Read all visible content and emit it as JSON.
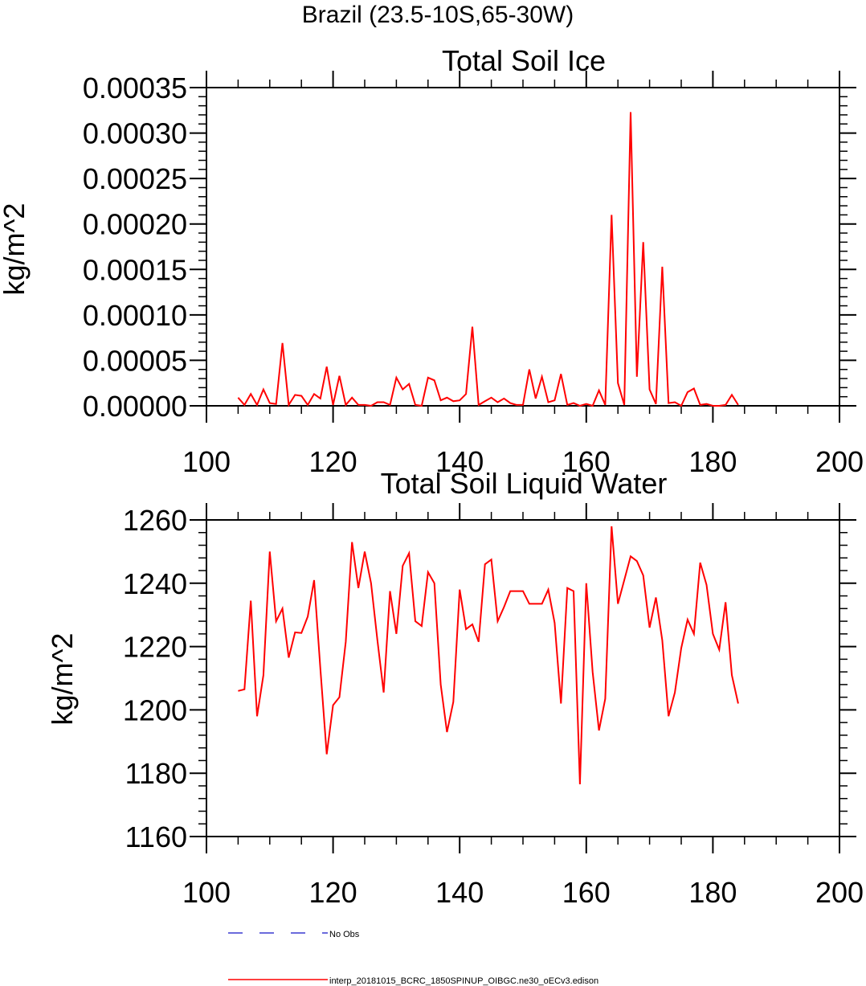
{
  "page_title": "Brazil (23.5-10S,65-30W)",
  "colors": {
    "model_line": "#ff0000",
    "obs_line": "#3a3ad0",
    "axis": "#000000"
  },
  "legend": {
    "obs_label": "No Obs",
    "model_label": "interp_20181015_BCRC_1850SPINUP_OIBGC.ne30_oECv3.edison"
  },
  "chart_data": [
    {
      "type": "line",
      "title": "Total Soil Ice",
      "ylabel": "kg/m^2",
      "xlim": [
        100,
        200
      ],
      "ylim": [
        0,
        0.00035
      ],
      "xticks": [
        100,
        120,
        140,
        160,
        180,
        200
      ],
      "xtick_labels": [
        "100",
        "120",
        "140",
        "160",
        "180",
        "200"
      ],
      "yticks": [
        0,
        5e-05,
        0.0001,
        0.00015,
        0.0002,
        0.00025,
        0.0003,
        0.00035
      ],
      "ytick_labels": [
        "0.00000",
        "0.00005",
        "0.00010",
        "0.00015",
        "0.00020",
        "0.00025",
        "0.00030",
        "0.00035"
      ],
      "series": [
        {
          "x": [
            105,
            106,
            107,
            108,
            109,
            110,
            111,
            112,
            113,
            114,
            115,
            116,
            117,
            118,
            119,
            120,
            121,
            122,
            123,
            124,
            125,
            126,
            127,
            128,
            129,
            130,
            131,
            132,
            133,
            134,
            135,
            136,
            137,
            138,
            139,
            140,
            141,
            142,
            143,
            144,
            145,
            146,
            147,
            148,
            149,
            150,
            151,
            152,
            153,
            154,
            155,
            156,
            157,
            158,
            159,
            160,
            161,
            162,
            163,
            164,
            165,
            166,
            167,
            168,
            169,
            170,
            171,
            172,
            173,
            174,
            175,
            176,
            177,
            178,
            179,
            180,
            181,
            182,
            183,
            184
          ],
          "y": [
            9e-06,
            1e-06,
            1.3e-05,
            1e-06,
            1.8e-05,
            3e-06,
            2e-06,
            6.9e-05,
            1e-06,
            1.2e-05,
            1.1e-05,
            1e-06,
            1.3e-05,
            8e-06,
            4.3e-05,
            1e-06,
            3.3e-05,
            1e-06,
            9e-06,
            1e-06,
            1e-06,
            0.0,
            4e-06,
            4e-06,
            1e-06,
            3.1e-05,
            1.8e-05,
            2.4e-05,
            1e-06,
            0.0,
            3.1e-05,
            2.8e-05,
            6e-06,
            9e-06,
            5e-06,
            6e-06,
            1.3e-05,
            8.7e-05,
            1e-06,
            5e-06,
            9e-06,
            4e-06,
            8e-06,
            3e-06,
            1e-06,
            1e-06,
            4e-05,
            8e-06,
            3.2e-05,
            4e-06,
            6e-06,
            3.5e-05,
            1e-06,
            3e-06,
            0.0,
            2e-06,
            0.0,
            1.7e-05,
            1e-06,
            0.00021,
            2.5e-05,
            1e-06,
            0.000323,
            3.2e-05,
            0.00018,
            1.8e-05,
            2e-06,
            0.000153,
            3e-06,
            4e-06,
            0.0,
            1.5e-05,
            1.9e-05,
            1e-06,
            2e-06,
            0.0,
            0.0,
            1e-06,
            1.2e-05,
            1e-06
          ]
        }
      ]
    },
    {
      "type": "line",
      "title": "Total Soil Liquid Water",
      "ylabel": "kg/m^2",
      "xlim": [
        100,
        200
      ],
      "ylim": [
        1160,
        1260
      ],
      "xticks": [
        100,
        120,
        140,
        160,
        180,
        200
      ],
      "xtick_labels": [
        "100",
        "120",
        "140",
        "160",
        "180",
        "200"
      ],
      "yticks": [
        1160,
        1180,
        1200,
        1220,
        1240,
        1260
      ],
      "ytick_labels": [
        "1160",
        "1180",
        "1200",
        "1220",
        "1240",
        "1260"
      ],
      "series": [
        {
          "x": [
            105,
            106,
            107,
            108,
            109,
            110,
            111,
            112,
            113,
            114,
            115,
            116,
            117,
            118,
            119,
            120,
            121,
            122,
            123,
            124,
            125,
            126,
            127,
            128,
            129,
            130,
            131,
            132,
            133,
            134,
            135,
            136,
            137,
            138,
            139,
            140,
            141,
            142,
            143,
            144,
            145,
            146,
            147,
            148,
            149,
            150,
            151,
            152,
            153,
            154,
            155,
            156,
            157,
            158,
            159,
            160,
            161,
            162,
            163,
            164,
            165,
            166,
            167,
            168,
            169,
            170,
            171,
            172,
            173,
            174,
            175,
            176,
            177,
            178,
            179,
            180,
            181,
            182,
            183,
            184
          ],
          "y": [
            1206,
            1206.5,
            1234.5,
            1198,
            1211,
            1250,
            1228,
            1232,
            1216.5,
            1224.5,
            1224.3,
            1229.5,
            1241,
            1213,
            1186,
            1201.5,
            1204,
            1221.5,
            1253,
            1238.5,
            1250,
            1240,
            1222,
            1205.5,
            1237.5,
            1224,
            1245.5,
            1249.5,
            1228,
            1226.5,
            1243.5,
            1240,
            1208,
            1193,
            1202.5,
            1238,
            1225.5,
            1227,
            1221.5,
            1246,
            1247.5,
            1228,
            1232.5,
            1237.5,
            1237.5,
            1237.5,
            1233.5,
            1233.5,
            1233.5,
            1238,
            1227.5,
            1202,
            1238.5,
            1237.5,
            1176.5,
            1240,
            1212,
            1193.5,
            1203.5,
            1258,
            1233.5,
            1241,
            1248.5,
            1247,
            1242.5,
            1226,
            1235.5,
            1222,
            1198,
            1205.5,
            1219.5,
            1228.5,
            1224,
            1246.5,
            1239.5,
            1224,
            1219,
            1234,
            1211,
            1202
          ]
        }
      ]
    }
  ]
}
